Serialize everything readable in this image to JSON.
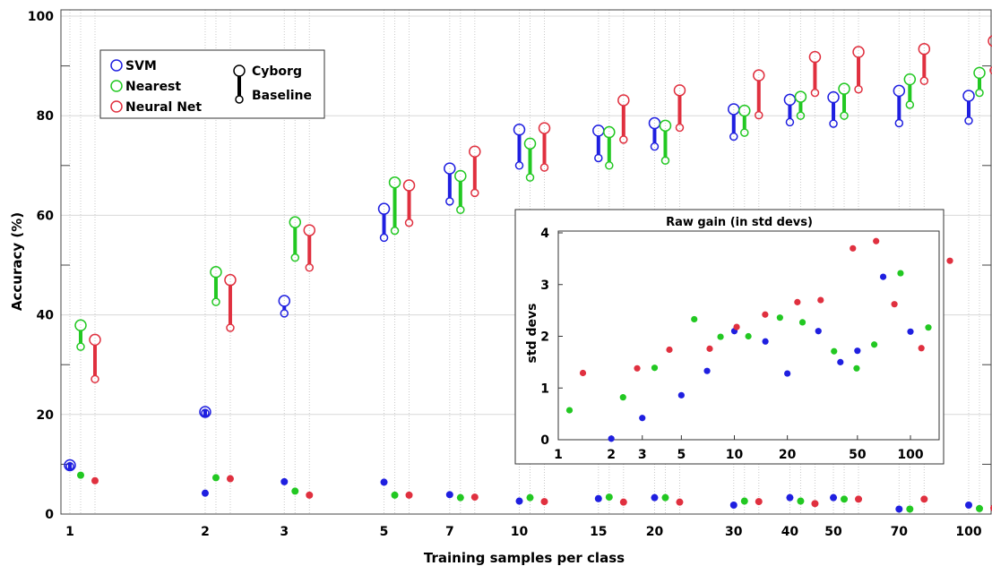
{
  "colors": {
    "SVM": "#1f1fe0",
    "Nearest": "#22c822",
    "Neural Net": "#e0303f"
  },
  "chart_data": [
    {
      "type": "scatter",
      "title": "",
      "xlabel": "Training samples per class",
      "ylabel": "Accuracy (%)",
      "xscale": "log",
      "x_ticks": [
        1,
        2,
        3,
        5,
        7,
        10,
        15,
        20,
        30,
        40,
        50,
        70,
        100
      ],
      "xlim": [
        1,
        130
      ],
      "ylim": [
        0,
        100
      ],
      "y_ticks": [
        0,
        20,
        40,
        60,
        80,
        100
      ],
      "grid": true,
      "legend_position": "top-left",
      "legend": {
        "series_names": [
          "SVM",
          "Nearest",
          "Neural Net"
        ],
        "marker_labels": [
          "Cyborg",
          "Baseline"
        ]
      },
      "series": [
        {
          "name": "SVM",
          "cyborg": [
            9.8,
            20.5,
            42.8,
            61.3,
            69.4,
            77.2,
            77.0,
            78.5,
            81.3,
            83.2,
            83.7,
            85.0,
            84.0
          ],
          "baseline": [
            9.6,
            20.3,
            40.3,
            55.5,
            62.8,
            70.0,
            71.5,
            73.8,
            75.8,
            78.7,
            78.4,
            78.5,
            79.0
          ],
          "raw_gain_std": [
            null,
            0.02,
            0.42,
            0.86,
            1.33,
            2.1,
            1.9,
            1.28,
            2.1,
            1.5,
            1.72,
            3.15,
            2.09
          ]
        },
        {
          "name": "Nearest",
          "cyborg": [
            37.9,
            48.6,
            58.6,
            66.6,
            67.9,
            74.4,
            76.7,
            78.0,
            81.0,
            83.8,
            85.4,
            87.3,
            88.6
          ],
          "baseline": [
            33.6,
            42.6,
            51.5,
            56.9,
            61.1,
            67.6,
            70.0,
            71.0,
            76.6,
            80.0,
            80.0,
            82.2,
            84.6
          ],
          "raw_gain_std": [
            0.57,
            0.82,
            1.39,
            2.33,
            1.99,
            2.0,
            2.36,
            2.27,
            1.71,
            1.38,
            1.84,
            3.22,
            2.17
          ]
        },
        {
          "name": "Neural Net",
          "cyborg": [
            35.0,
            47.0,
            57.0,
            66.0,
            72.8,
            77.5,
            83.1,
            85.1,
            88.1,
            91.8,
            92.8,
            93.4,
            95.0
          ],
          "baseline": [
            27.1,
            37.4,
            49.5,
            58.5,
            64.5,
            69.6,
            75.2,
            77.6,
            80.1,
            84.6,
            85.3,
            87.0,
            89.1
          ],
          "raw_gain_std": [
            1.29,
            1.38,
            1.74,
            1.76,
            2.18,
            2.42,
            2.66,
            2.7,
            3.7,
            3.84,
            2.62,
            1.77,
            3.46
          ]
        }
      ],
      "bottom_points": {
        "SVM": [
          null,
          4.2,
          6.5,
          6.4,
          3.9,
          2.6,
          3.1,
          3.3,
          1.8,
          3.3,
          3.3,
          1.0,
          1.8
        ],
        "Nearest": [
          7.8,
          7.3,
          4.6,
          3.8,
          3.3,
          3.3,
          3.4,
          3.3,
          2.6,
          2.6,
          3.0,
          1.0,
          1.1
        ],
        "Neural Net": [
          6.7,
          7.1,
          3.8,
          3.8,
          3.4,
          2.5,
          2.4,
          2.4,
          2.5,
          2.1,
          3.0,
          3.0,
          1.2
        ]
      }
    },
    {
      "type": "scatter",
      "title": "Raw gain (in std devs)",
      "xlabel": "",
      "ylabel": "std devs",
      "xscale": "log",
      "x_ticks": [
        1,
        2,
        3,
        5,
        10,
        20,
        50,
        100
      ],
      "xlim": [
        1,
        120
      ],
      "ylim": [
        0,
        4
      ],
      "y_ticks": [
        0,
        1,
        2,
        3,
        4
      ]
    }
  ]
}
